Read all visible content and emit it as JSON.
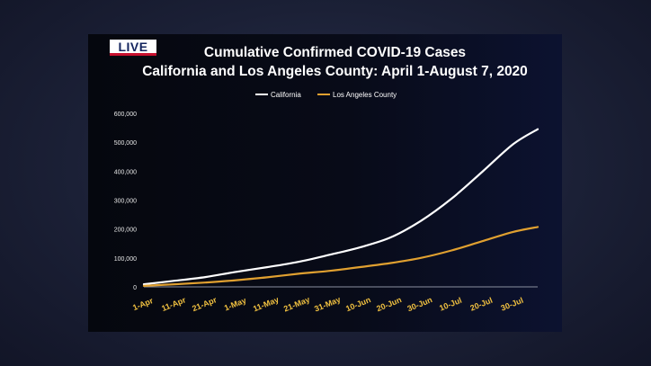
{
  "badge": {
    "label": "LIVE"
  },
  "chart_data": {
    "type": "line",
    "title_line1": "Cumulative Confirmed COVID-19 Cases",
    "title_line2": "California and Los Angeles County: April 1-August 7, 2020",
    "xlabel": "",
    "ylabel": "",
    "ylim": [
      0,
      600000
    ],
    "y_ticks": [
      0,
      100000,
      200000,
      300000,
      400000,
      500000,
      600000
    ],
    "y_tick_labels": [
      "0",
      "100,000",
      "200,000",
      "300,000",
      "400,000",
      "500,000",
      "600,000"
    ],
    "x_start": "2020-04-01",
    "x_end": "2020-08-07",
    "x_ticks": [
      "2020-04-01",
      "2020-04-11",
      "2020-04-21",
      "2020-05-01",
      "2020-05-11",
      "2020-05-21",
      "2020-05-31",
      "2020-06-10",
      "2020-06-20",
      "2020-06-30",
      "2020-07-10",
      "2020-07-20",
      "2020-07-30"
    ],
    "x_tick_labels": [
      "1-Apr",
      "11-Apr",
      "21-Apr",
      "1-May",
      "11-May",
      "21-May",
      "31-May",
      "10-Jun",
      "20-Jun",
      "30-Jun",
      "10-Jul",
      "20-Jul",
      "30-Jul"
    ],
    "legend_position": "top-center",
    "grid": false,
    "series": [
      {
        "name": "California",
        "color": "#ffffff",
        "points": [
          [
            "2020-04-01",
            9000
          ],
          [
            "2020-04-11",
            21000
          ],
          [
            "2020-04-21",
            34000
          ],
          [
            "2020-05-01",
            52000
          ],
          [
            "2020-05-11",
            68000
          ],
          [
            "2020-05-21",
            86000
          ],
          [
            "2020-05-31",
            110000
          ],
          [
            "2020-06-10",
            136000
          ],
          [
            "2020-06-20",
            170000
          ],
          [
            "2020-06-30",
            228000
          ],
          [
            "2020-07-10",
            305000
          ],
          [
            "2020-07-20",
            398000
          ],
          [
            "2020-07-30",
            493000
          ],
          [
            "2020-08-07",
            545000
          ]
        ]
      },
      {
        "name": "Los Angeles County",
        "color": "#e0a030",
        "points": [
          [
            "2020-04-01",
            3500
          ],
          [
            "2020-04-11",
            9000
          ],
          [
            "2020-04-21",
            15000
          ],
          [
            "2020-05-01",
            23000
          ],
          [
            "2020-05-11",
            33000
          ],
          [
            "2020-05-21",
            45000
          ],
          [
            "2020-05-31",
            55000
          ],
          [
            "2020-06-10",
            68000
          ],
          [
            "2020-06-20",
            82000
          ],
          [
            "2020-06-30",
            100000
          ],
          [
            "2020-07-10",
            126000
          ],
          [
            "2020-07-20",
            158000
          ],
          [
            "2020-07-30",
            190000
          ],
          [
            "2020-08-07",
            207000
          ]
        ]
      }
    ]
  }
}
